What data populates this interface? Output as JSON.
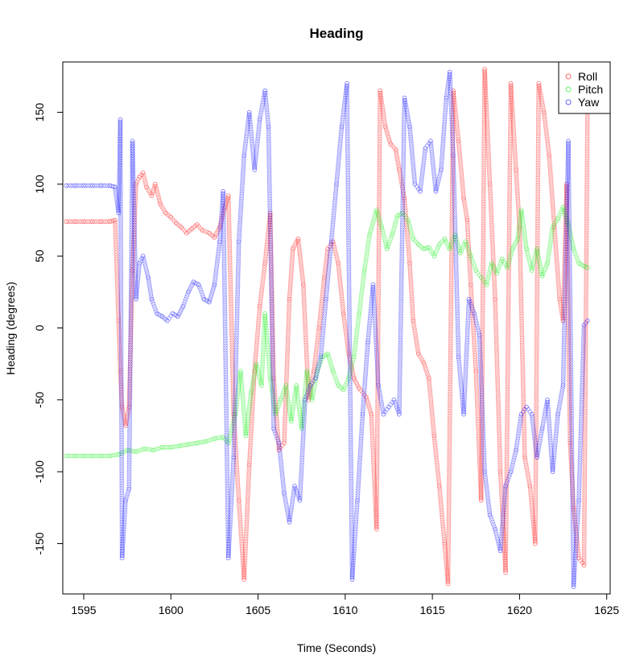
{
  "chart_data": {
    "type": "scatter",
    "title": "Heading",
    "xlabel": "Time (Seconds)",
    "ylabel": "Heading (degrees)",
    "xlim": [
      1593.8,
      1625.2
    ],
    "ylim": [
      -185,
      185
    ],
    "xticks": [
      1595,
      1600,
      1605,
      1610,
      1615,
      1620,
      1625
    ],
    "yticks": [
      -150,
      -100,
      -50,
      0,
      50,
      100,
      150
    ],
    "grid": false,
    "legend_position": "top-right",
    "series": [
      {
        "name": "Roll",
        "color": "#ff0000",
        "points": [
          [
            1594.0,
            74
          ],
          [
            1594.5,
            74
          ],
          [
            1595.0,
            74
          ],
          [
            1595.5,
            74
          ],
          [
            1596.0,
            74
          ],
          [
            1596.5,
            74
          ],
          [
            1596.8,
            75
          ],
          [
            1597.0,
            5
          ],
          [
            1597.1,
            -30
          ],
          [
            1597.2,
            -55
          ],
          [
            1597.4,
            -68
          ],
          [
            1597.6,
            -55
          ],
          [
            1597.8,
            40
          ],
          [
            1598.0,
            100
          ],
          [
            1598.2,
            105
          ],
          [
            1598.4,
            108
          ],
          [
            1598.6,
            98
          ],
          [
            1598.9,
            92
          ],
          [
            1599.1,
            100
          ],
          [
            1599.4,
            86
          ],
          [
            1599.7,
            80
          ],
          [
            1600.0,
            77
          ],
          [
            1600.3,
            73
          ],
          [
            1600.6,
            70
          ],
          [
            1600.9,
            66
          ],
          [
            1601.2,
            69
          ],
          [
            1601.5,
            72
          ],
          [
            1601.8,
            68
          ],
          [
            1602.2,
            66
          ],
          [
            1602.5,
            63
          ],
          [
            1602.8,
            70
          ],
          [
            1603.1,
            84
          ],
          [
            1603.3,
            92
          ],
          [
            1603.6,
            -60
          ],
          [
            1603.9,
            -120
          ],
          [
            1604.2,
            -175
          ],
          [
            1604.5,
            -95
          ],
          [
            1604.8,
            -30
          ],
          [
            1605.1,
            15
          ],
          [
            1605.4,
            45
          ],
          [
            1605.7,
            80
          ],
          [
            1605.9,
            -35
          ],
          [
            1606.2,
            -85
          ],
          [
            1606.5,
            -80
          ],
          [
            1606.8,
            20
          ],
          [
            1607.0,
            55
          ],
          [
            1607.3,
            62
          ],
          [
            1607.6,
            30
          ],
          [
            1607.9,
            -50
          ],
          [
            1608.2,
            -30
          ],
          [
            1608.5,
            0
          ],
          [
            1608.8,
            35
          ],
          [
            1609.0,
            55
          ],
          [
            1609.3,
            60
          ],
          [
            1609.6,
            45
          ],
          [
            1609.9,
            10
          ],
          [
            1610.2,
            -18
          ],
          [
            1610.5,
            -35
          ],
          [
            1610.8,
            -42
          ],
          [
            1611.2,
            -48
          ],
          [
            1611.5,
            -60
          ],
          [
            1611.8,
            -140
          ],
          [
            1612.0,
            165
          ],
          [
            1612.3,
            140
          ],
          [
            1612.6,
            128
          ],
          [
            1612.9,
            124
          ],
          [
            1613.1,
            110
          ],
          [
            1613.4,
            90
          ],
          [
            1613.7,
            45
          ],
          [
            1613.9,
            5
          ],
          [
            1614.2,
            -18
          ],
          [
            1614.5,
            -24
          ],
          [
            1614.8,
            -35
          ],
          [
            1615.1,
            -75
          ],
          [
            1615.4,
            -110
          ],
          [
            1615.7,
            -150
          ],
          [
            1615.9,
            -178
          ],
          [
            1616.2,
            165
          ],
          [
            1616.5,
            130
          ],
          [
            1616.8,
            90
          ],
          [
            1617.0,
            75
          ],
          [
            1617.2,
            30
          ],
          [
            1617.5,
            -30
          ],
          [
            1617.8,
            -120
          ],
          [
            1618.0,
            180
          ],
          [
            1618.3,
            100
          ],
          [
            1618.6,
            20
          ],
          [
            1618.9,
            -100
          ],
          [
            1619.2,
            -170
          ],
          [
            1619.5,
            170
          ],
          [
            1619.8,
            110
          ],
          [
            1620.0,
            70
          ],
          [
            1620.3,
            -90
          ],
          [
            1620.6,
            -110
          ],
          [
            1620.9,
            -150
          ],
          [
            1621.1,
            170
          ],
          [
            1621.4,
            150
          ],
          [
            1621.7,
            120
          ],
          [
            1622.0,
            70
          ],
          [
            1622.3,
            20
          ],
          [
            1622.5,
            5
          ],
          [
            1622.7,
            100
          ],
          [
            1622.9,
            -80
          ],
          [
            1623.1,
            -125
          ],
          [
            1623.4,
            -160
          ],
          [
            1623.7,
            -165
          ],
          [
            1623.9,
            155
          ]
        ]
      },
      {
        "name": "Pitch",
        "color": "#00ee00",
        "points": [
          [
            1594.0,
            -89
          ],
          [
            1594.5,
            -89
          ],
          [
            1595.0,
            -89
          ],
          [
            1595.5,
            -89
          ],
          [
            1596.0,
            -89
          ],
          [
            1596.5,
            -89
          ],
          [
            1597.0,
            -88
          ],
          [
            1597.5,
            -85
          ],
          [
            1598.0,
            -86
          ],
          [
            1598.5,
            -84
          ],
          [
            1599.0,
            -85
          ],
          [
            1599.5,
            -83
          ],
          [
            1600.0,
            -83
          ],
          [
            1600.5,
            -82
          ],
          [
            1601.0,
            -81
          ],
          [
            1601.5,
            -80
          ],
          [
            1602.0,
            -79
          ],
          [
            1602.5,
            -77
          ],
          [
            1603.0,
            -76
          ],
          [
            1603.3,
            -80
          ],
          [
            1603.7,
            -60
          ],
          [
            1604.0,
            -30
          ],
          [
            1604.3,
            -75
          ],
          [
            1604.6,
            -45
          ],
          [
            1604.9,
            -25
          ],
          [
            1605.2,
            -40
          ],
          [
            1605.4,
            10
          ],
          [
            1605.7,
            -35
          ],
          [
            1606.0,
            -60
          ],
          [
            1606.3,
            -50
          ],
          [
            1606.6,
            -40
          ],
          [
            1606.9,
            -65
          ],
          [
            1607.2,
            -40
          ],
          [
            1607.5,
            -70
          ],
          [
            1607.8,
            -30
          ],
          [
            1608.1,
            -50
          ],
          [
            1608.4,
            -30
          ],
          [
            1608.7,
            -20
          ],
          [
            1609.0,
            -18
          ],
          [
            1609.3,
            -30
          ],
          [
            1609.6,
            -40
          ],
          [
            1609.9,
            -43
          ],
          [
            1610.2,
            -35
          ],
          [
            1610.5,
            -20
          ],
          [
            1610.8,
            10
          ],
          [
            1611.1,
            40
          ],
          [
            1611.4,
            65
          ],
          [
            1611.8,
            82
          ],
          [
            1612.1,
            70
          ],
          [
            1612.4,
            55
          ],
          [
            1612.7,
            65
          ],
          [
            1613.0,
            78
          ],
          [
            1613.3,
            80
          ],
          [
            1613.6,
            75
          ],
          [
            1613.9,
            62
          ],
          [
            1614.2,
            58
          ],
          [
            1614.5,
            55
          ],
          [
            1614.8,
            56
          ],
          [
            1615.1,
            50
          ],
          [
            1615.4,
            58
          ],
          [
            1615.7,
            62
          ],
          [
            1616.0,
            55
          ],
          [
            1616.3,
            65
          ],
          [
            1616.6,
            52
          ],
          [
            1616.9,
            60
          ],
          [
            1617.2,
            50
          ],
          [
            1617.5,
            40
          ],
          [
            1617.8,
            35
          ],
          [
            1618.1,
            30
          ],
          [
            1618.4,
            45
          ],
          [
            1618.7,
            38
          ],
          [
            1619.0,
            48
          ],
          [
            1619.3,
            42
          ],
          [
            1619.6,
            55
          ],
          [
            1619.9,
            62
          ],
          [
            1620.1,
            82
          ],
          [
            1620.4,
            55
          ],
          [
            1620.7,
            40
          ],
          [
            1621.0,
            55
          ],
          [
            1621.3,
            36
          ],
          [
            1621.6,
            45
          ],
          [
            1621.9,
            70
          ],
          [
            1622.2,
            76
          ],
          [
            1622.5,
            84
          ],
          [
            1622.8,
            72
          ],
          [
            1623.1,
            55
          ],
          [
            1623.4,
            45
          ],
          [
            1623.7,
            43
          ],
          [
            1623.9,
            42
          ]
        ]
      },
      {
        "name": "Yaw",
        "color": "#0000ff",
        "points": [
          [
            1594.0,
            99
          ],
          [
            1594.5,
            99
          ],
          [
            1595.0,
            99
          ],
          [
            1595.5,
            99
          ],
          [
            1596.0,
            99
          ],
          [
            1596.5,
            99
          ],
          [
            1596.8,
            98
          ],
          [
            1597.0,
            80
          ],
          [
            1597.1,
            145
          ],
          [
            1597.2,
            -160
          ],
          [
            1597.4,
            -120
          ],
          [
            1597.6,
            -112
          ],
          [
            1597.8,
            130
          ],
          [
            1598.0,
            20
          ],
          [
            1598.2,
            45
          ],
          [
            1598.4,
            50
          ],
          [
            1598.7,
            35
          ],
          [
            1598.9,
            20
          ],
          [
            1599.2,
            10
          ],
          [
            1599.5,
            8
          ],
          [
            1599.8,
            5
          ],
          [
            1600.1,
            10
          ],
          [
            1600.4,
            8
          ],
          [
            1600.7,
            15
          ],
          [
            1601.0,
            25
          ],
          [
            1601.3,
            32
          ],
          [
            1601.6,
            30
          ],
          [
            1601.9,
            20
          ],
          [
            1602.2,
            18
          ],
          [
            1602.5,
            30
          ],
          [
            1602.8,
            60
          ],
          [
            1603.0,
            95
          ],
          [
            1603.3,
            -160
          ],
          [
            1603.6,
            -90
          ],
          [
            1603.9,
            60
          ],
          [
            1604.2,
            120
          ],
          [
            1604.5,
            150
          ],
          [
            1604.8,
            110
          ],
          [
            1605.1,
            145
          ],
          [
            1605.4,
            165
          ],
          [
            1605.6,
            140
          ],
          [
            1605.9,
            -70
          ],
          [
            1606.2,
            -80
          ],
          [
            1606.5,
            -115
          ],
          [
            1606.8,
            -135
          ],
          [
            1607.1,
            -110
          ],
          [
            1607.4,
            -120
          ],
          [
            1607.7,
            -50
          ],
          [
            1608.0,
            -40
          ],
          [
            1608.3,
            -35
          ],
          [
            1608.6,
            -20
          ],
          [
            1608.9,
            20
          ],
          [
            1609.2,
            60
          ],
          [
            1609.5,
            100
          ],
          [
            1609.8,
            140
          ],
          [
            1610.1,
            170
          ],
          [
            1610.4,
            -175
          ],
          [
            1610.7,
            -120
          ],
          [
            1611.0,
            -60
          ],
          [
            1611.3,
            -10
          ],
          [
            1611.6,
            30
          ],
          [
            1611.9,
            -40
          ],
          [
            1612.2,
            -60
          ],
          [
            1612.5,
            -55
          ],
          [
            1612.8,
            -50
          ],
          [
            1613.1,
            -60
          ],
          [
            1613.4,
            160
          ],
          [
            1613.7,
            140
          ],
          [
            1614.0,
            100
          ],
          [
            1614.3,
            95
          ],
          [
            1614.6,
            125
          ],
          [
            1614.9,
            130
          ],
          [
            1615.2,
            95
          ],
          [
            1615.5,
            110
          ],
          [
            1615.8,
            160
          ],
          [
            1616.0,
            178
          ],
          [
            1616.2,
            120
          ],
          [
            1616.5,
            -20
          ],
          [
            1616.8,
            -60
          ],
          [
            1617.1,
            20
          ],
          [
            1617.4,
            10
          ],
          [
            1617.7,
            -5
          ],
          [
            1618.0,
            -100
          ],
          [
            1618.3,
            -130
          ],
          [
            1618.6,
            -140
          ],
          [
            1618.9,
            -155
          ],
          [
            1619.2,
            -110
          ],
          [
            1619.5,
            -100
          ],
          [
            1619.8,
            -85
          ],
          [
            1620.1,
            -60
          ],
          [
            1620.4,
            -55
          ],
          [
            1620.7,
            -60
          ],
          [
            1621.0,
            -90
          ],
          [
            1621.3,
            -70
          ],
          [
            1621.6,
            -50
          ],
          [
            1621.9,
            -100
          ],
          [
            1622.2,
            -60
          ],
          [
            1622.5,
            -40
          ],
          [
            1622.8,
            130
          ],
          [
            1623.1,
            -180
          ],
          [
            1623.4,
            -120
          ],
          [
            1623.7,
            2
          ],
          [
            1623.9,
            5
          ]
        ]
      }
    ]
  }
}
